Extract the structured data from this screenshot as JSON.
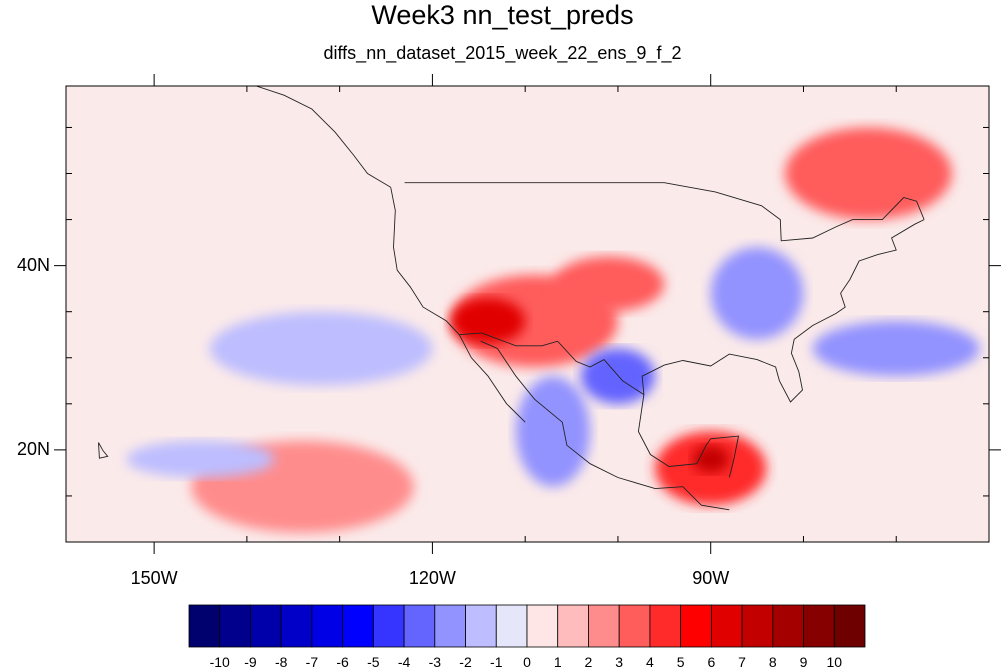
{
  "title": "Week3 nn_test_preds",
  "subtitle": "diffs_nn_dataset_2015_week_22_ens_9_f_2",
  "lat_labels": [
    {
      "text": "40N",
      "lat": 40
    },
    {
      "text": "20N",
      "lat": 20
    }
  ],
  "lon_labels": [
    {
      "text": "150W",
      "lon": -150
    },
    {
      "text": "120W",
      "lon": -120
    },
    {
      "text": "90W",
      "lon": -90
    }
  ],
  "colorbar": {
    "labels": [
      "-10",
      "-9",
      "-8",
      "-7",
      "-6",
      "-5",
      "-4",
      "-3",
      "-2",
      "-1",
      "0",
      "1",
      "2",
      "3",
      "4",
      "5",
      "6",
      "7",
      "8",
      "9",
      "10"
    ],
    "colors": [
      "#00006e",
      "#00008c",
      "#0000aa",
      "#0000c8",
      "#0000e6",
      "#0000ff",
      "#3535ff",
      "#6464ff",
      "#9393ff",
      "#bdbdff",
      "#e6e6fa",
      "#ffe6e6",
      "#ffbcbc",
      "#ff8c8c",
      "#ff5c5c",
      "#ff2a2a",
      "#ff0000",
      "#e10000",
      "#c30000",
      "#a50000",
      "#870000",
      "#6e0000"
    ]
  },
  "map": {
    "extent": {
      "lon_min": -159.5,
      "lon_max": -60,
      "lat_min": 10,
      "lat_max": 59.5
    },
    "background_color": "#fbeaea",
    "features": [
      {
        "name": "hot-southwest",
        "level": 6,
        "lon": -114,
        "lat": 34,
        "rlon": 4,
        "rlat": 2.5
      },
      {
        "name": "warm-southwest",
        "level": 3,
        "lon": -109,
        "lat": 34,
        "rlon": 9,
        "rlat": 5
      },
      {
        "name": "warm-plains",
        "level": 3,
        "lon": -101,
        "lat": 38,
        "rlon": 6,
        "rlat": 3
      },
      {
        "name": "hot-gulf-mexico",
        "level": 7,
        "lon": -90,
        "lat": 19,
        "rlon": 2,
        "rlat": 1.5
      },
      {
        "name": "warm-central-america",
        "level": 4,
        "lon": -90,
        "lat": 18,
        "rlon": 6,
        "rlat": 4
      },
      {
        "name": "warm-quebec",
        "level": 3,
        "lon": -73,
        "lat": 50,
        "rlon": 9,
        "rlat": 5
      },
      {
        "name": "warm-east-pacific",
        "level": 2,
        "lon": -134,
        "lat": 16,
        "rlon": 12,
        "rlat": 5
      },
      {
        "name": "cool-midwest",
        "level": -3,
        "lon": -85,
        "lat": 37,
        "rlon": 5,
        "rlat": 5
      },
      {
        "name": "cool-texas",
        "level": -4,
        "lon": -100,
        "lat": 28,
        "rlon": 4,
        "rlat": 3
      },
      {
        "name": "cool-mexico-coast",
        "level": -3,
        "lon": -107,
        "lat": 22,
        "rlon": 4,
        "rlat": 6
      },
      {
        "name": "cool-atlantic",
        "level": -3,
        "lon": -70,
        "lat": 31,
        "rlon": 9,
        "rlat": 3
      },
      {
        "name": "cool-pacific-1",
        "level": -2,
        "lon": -132,
        "lat": 31,
        "rlon": 12,
        "rlat": 4
      },
      {
        "name": "cool-pacific-2",
        "level": -2,
        "lon": -145,
        "lat": 19,
        "rlon": 8,
        "rlat": 2
      }
    ]
  }
}
